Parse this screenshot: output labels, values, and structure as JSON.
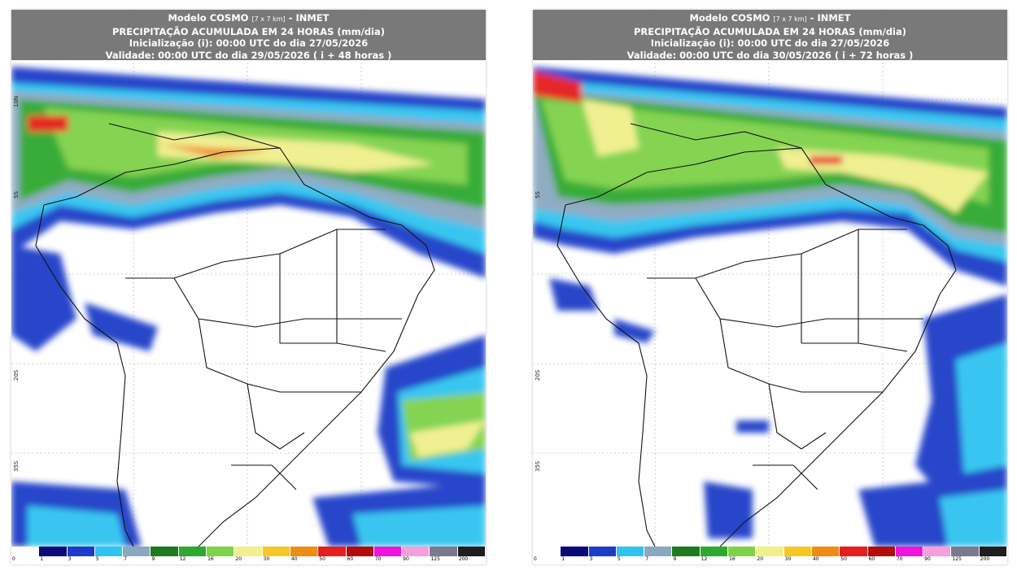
{
  "panels": [
    {
      "title_main": "Modelo COSMO",
      "title_grid": "[7 x 7 km]",
      "title_org": "- INMET",
      "subtitle": "PRECIPITAÇÃO ACUMULADA EM 24 HORAS (mm/dia)",
      "init": "Inicialização (i): 00:00 UTC do dia 27/05/2026",
      "valid": "Validade: 00:00 UTC do dia 29/05/2026 ( i + 48 horas )"
    },
    {
      "title_main": "Modelo COSMO",
      "title_grid": "[7 x 7 km]",
      "title_org": "- INMET",
      "subtitle": "PRECIPITAÇÃO ACUMULADA EM 24 HORAS (mm/dia)",
      "init": "Inicialização (i): 00:00 UTC do dia 27/05/2026",
      "valid": "Validade: 00:00 UTC do dia 30/05/2026 ( i + 72 horas )"
    }
  ],
  "latitude_labels": [
    "10N",
    "5S",
    "20S",
    "35S"
  ],
  "colorbar": {
    "labels": [
      "0",
      "1",
      "3",
      "5",
      "7",
      "9",
      "12",
      "16",
      "20",
      "30",
      "40",
      "50",
      "60",
      "70",
      "90",
      "125",
      "200"
    ],
    "colors": [
      "#ffffff",
      "#0a0a78",
      "#1e3cc8",
      "#2fc4f0",
      "#8aa8c0",
      "#1e7a1e",
      "#2ea82e",
      "#7ed24a",
      "#f0f08c",
      "#f5c828",
      "#f08c14",
      "#e61e1e",
      "#b40a0a",
      "#f014dc",
      "#f5a0dc",
      "#7a7a8c",
      "#1e1e1e"
    ]
  }
}
